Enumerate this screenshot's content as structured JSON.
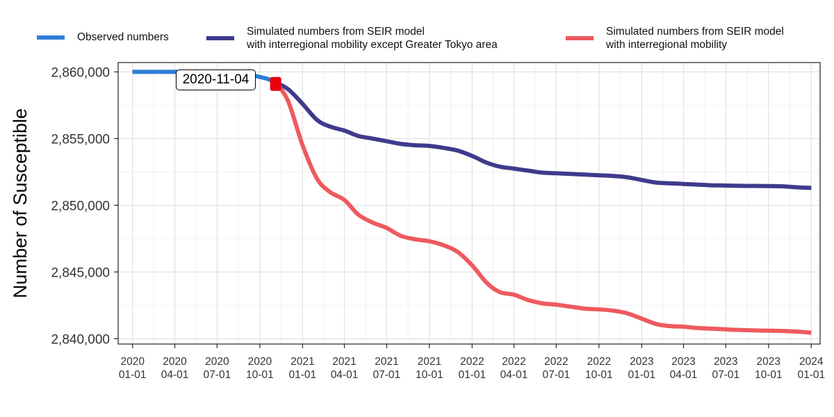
{
  "legend": {
    "items": [
      {
        "label": "Observed numbers",
        "color": "#2F7ED8"
      },
      {
        "label": "Simulated numbers from SEIR model\nwith interregional mobility except Greater Tokyo area",
        "color": "#3F3A8C"
      },
      {
        "label": "Simulated numbers from SEIR model\nwith interregional mobility",
        "color": "#EE5A5E"
      }
    ]
  },
  "annotation": {
    "label": "2020-11-04",
    "marker_color": "#E8000B",
    "x": "2020-11-04",
    "y": 2859100
  },
  "chart_data": {
    "type": "line",
    "xlabel": "",
    "ylabel": "Number of Susceptible",
    "xlim": [
      "2019-12-01",
      "2024-01-20"
    ],
    "ylim": [
      2839600,
      2860700
    ],
    "grid": true,
    "legend_position": "top",
    "x_ticks": [
      {
        "date": "2020-01-01",
        "label": [
          "2020",
          "01-01"
        ]
      },
      {
        "date": "2020-04-01",
        "label": [
          "2020",
          "04-01"
        ]
      },
      {
        "date": "2020-07-01",
        "label": [
          "2020",
          "07-01"
        ]
      },
      {
        "date": "2020-10-01",
        "label": [
          "2020",
          "10-01"
        ]
      },
      {
        "date": "2021-01-01",
        "label": [
          "2021",
          "01-01"
        ]
      },
      {
        "date": "2021-04-01",
        "label": [
          "2021",
          "04-01"
        ]
      },
      {
        "date": "2021-07-01",
        "label": [
          "2021",
          "07-01"
        ]
      },
      {
        "date": "2021-10-01",
        "label": [
          "2021",
          "10-01"
        ]
      },
      {
        "date": "2022-01-01",
        "label": [
          "2022",
          "01-01"
        ]
      },
      {
        "date": "2022-04-01",
        "label": [
          "2022",
          "04-01"
        ]
      },
      {
        "date": "2022-07-01",
        "label": [
          "2022",
          "07-01"
        ]
      },
      {
        "date": "2022-10-01",
        "label": [
          "2022",
          "10-01"
        ]
      },
      {
        "date": "2023-01-01",
        "label": [
          "2023",
          "01-01"
        ]
      },
      {
        "date": "2023-04-01",
        "label": [
          "2023",
          "04-01"
        ]
      },
      {
        "date": "2023-07-01",
        "label": [
          "2023",
          "07-01"
        ]
      },
      {
        "date": "2023-10-01",
        "label": [
          "2023",
          "10-01"
        ]
      },
      {
        "date": "2024-01-01",
        "label": [
          "2024",
          "01-01"
        ]
      }
    ],
    "y_ticks": [
      {
        "value": 2840000,
        "label": "2,840,000"
      },
      {
        "value": 2845000,
        "label": "2,845,000"
      },
      {
        "value": 2850000,
        "label": "2,850,000"
      },
      {
        "value": 2855000,
        "label": "2,855,000"
      },
      {
        "value": 2860000,
        "label": "2,860,000"
      }
    ],
    "series": [
      {
        "name": "Observed numbers",
        "color": "#2F7ED8",
        "points": [
          [
            "2020-01-01",
            2860000
          ],
          [
            "2020-03-01",
            2860000
          ],
          [
            "2020-05-01",
            2860000
          ],
          [
            "2020-07-01",
            2859950
          ],
          [
            "2020-09-01",
            2859800
          ],
          [
            "2020-10-15",
            2859500
          ],
          [
            "2020-11-04",
            2859200
          ]
        ]
      },
      {
        "name": "Simulated numbers from SEIR model\nwith interregional mobility except Greater Tokyo area",
        "color": "#3F3A8C",
        "points": [
          [
            "2020-11-04",
            2859200
          ],
          [
            "2020-12-01",
            2858700
          ],
          [
            "2021-01-01",
            2857600
          ],
          [
            "2021-02-01",
            2856400
          ],
          [
            "2021-03-01",
            2855900
          ],
          [
            "2021-04-01",
            2855600
          ],
          [
            "2021-05-01",
            2855200
          ],
          [
            "2021-06-01",
            2855000
          ],
          [
            "2021-07-01",
            2854800
          ],
          [
            "2021-08-01",
            2854600
          ],
          [
            "2021-09-01",
            2854500
          ],
          [
            "2021-10-01",
            2854450
          ],
          [
            "2021-11-01",
            2854300
          ],
          [
            "2021-12-01",
            2854100
          ],
          [
            "2022-01-01",
            2853700
          ],
          [
            "2022-02-01",
            2853200
          ],
          [
            "2022-03-01",
            2852900
          ],
          [
            "2022-04-01",
            2852750
          ],
          [
            "2022-05-01",
            2852600
          ],
          [
            "2022-06-01",
            2852450
          ],
          [
            "2022-07-01",
            2852400
          ],
          [
            "2022-08-01",
            2852350
          ],
          [
            "2022-09-01",
            2852300
          ],
          [
            "2022-10-01",
            2852250
          ],
          [
            "2022-11-01",
            2852200
          ],
          [
            "2022-12-01",
            2852100
          ],
          [
            "2023-01-01",
            2851900
          ],
          [
            "2023-02-01",
            2851700
          ],
          [
            "2023-03-01",
            2851650
          ],
          [
            "2023-04-01",
            2851600
          ],
          [
            "2023-05-01",
            2851550
          ],
          [
            "2023-06-01",
            2851500
          ],
          [
            "2023-07-01",
            2851480
          ],
          [
            "2023-08-01",
            2851460
          ],
          [
            "2023-09-01",
            2851450
          ],
          [
            "2023-10-01",
            2851440
          ],
          [
            "2023-11-01",
            2851420
          ],
          [
            "2023-12-01",
            2851350
          ],
          [
            "2024-01-01",
            2851300
          ]
        ]
      },
      {
        "name": "Simulated numbers from SEIR model\nwith interregional mobility",
        "color": "#EE5A5E",
        "points": [
          [
            "2020-11-04",
            2859200
          ],
          [
            "2020-12-01",
            2857800
          ],
          [
            "2021-01-01",
            2854500
          ],
          [
            "2021-02-01",
            2852000
          ],
          [
            "2021-03-01",
            2851000
          ],
          [
            "2021-04-01",
            2850400
          ],
          [
            "2021-05-01",
            2849300
          ],
          [
            "2021-06-01",
            2848700
          ],
          [
            "2021-07-01",
            2848300
          ],
          [
            "2021-08-01",
            2847700
          ],
          [
            "2021-09-01",
            2847450
          ],
          [
            "2021-10-01",
            2847300
          ],
          [
            "2021-11-01",
            2847000
          ],
          [
            "2021-12-01",
            2846500
          ],
          [
            "2022-01-01",
            2845500
          ],
          [
            "2022-02-01",
            2844200
          ],
          [
            "2022-03-01",
            2843500
          ],
          [
            "2022-04-01",
            2843300
          ],
          [
            "2022-05-01",
            2842900
          ],
          [
            "2022-06-01",
            2842650
          ],
          [
            "2022-07-01",
            2842550
          ],
          [
            "2022-08-01",
            2842400
          ],
          [
            "2022-09-01",
            2842250
          ],
          [
            "2022-10-01",
            2842200
          ],
          [
            "2022-11-01",
            2842100
          ],
          [
            "2022-12-01",
            2841900
          ],
          [
            "2023-01-01",
            2841500
          ],
          [
            "2023-02-01",
            2841100
          ],
          [
            "2023-03-01",
            2840950
          ],
          [
            "2023-04-01",
            2840900
          ],
          [
            "2023-05-01",
            2840800
          ],
          [
            "2023-06-01",
            2840750
          ],
          [
            "2023-07-01",
            2840700
          ],
          [
            "2023-08-01",
            2840650
          ],
          [
            "2023-09-01",
            2840620
          ],
          [
            "2023-10-01",
            2840600
          ],
          [
            "2023-11-01",
            2840580
          ],
          [
            "2023-12-01",
            2840530
          ],
          [
            "2024-01-01",
            2840450
          ]
        ]
      }
    ]
  }
}
